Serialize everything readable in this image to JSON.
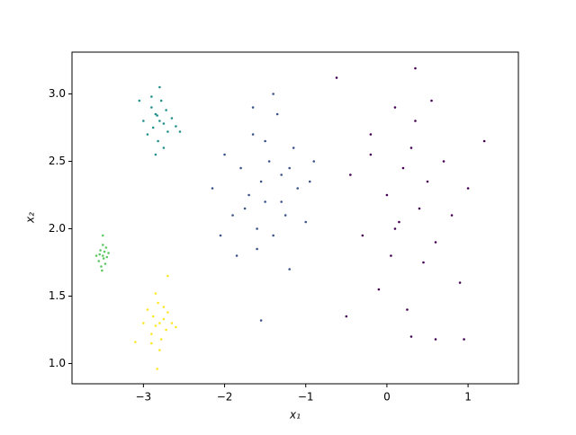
{
  "chart_data": {
    "type": "scatter",
    "xlabel": "x₁",
    "ylabel": "x₂",
    "xlim": [
      -3.88,
      1.62
    ],
    "ylim": [
      0.85,
      3.31
    ],
    "xticks": [
      {
        "value": -3,
        "label": "−3"
      },
      {
        "value": -2,
        "label": "−2"
      },
      {
        "value": -1,
        "label": "−1"
      },
      0,
      1
    ],
    "yticks": [
      {
        "value": 1,
        "label": "1.0"
      },
      1.5,
      {
        "value": 2,
        "label": "2.0"
      },
      2.5,
      {
        "value": 3,
        "label": "3.0"
      }
    ],
    "series": [
      {
        "color": "#440154",
        "x": [
          -0.62,
          -0.45,
          -0.3,
          -0.2,
          -0.1,
          0.0,
          0.05,
          0.1,
          0.15,
          0.2,
          0.25,
          0.3,
          0.35,
          0.4,
          0.45,
          0.5,
          0.55,
          0.6,
          0.7,
          0.8,
          0.9,
          1.0,
          1.2,
          -0.5,
          0.1,
          0.3,
          -0.2,
          0.6,
          0.35,
          0.95
        ],
        "y": [
          3.12,
          2.4,
          1.95,
          2.7,
          1.55,
          2.25,
          1.8,
          2.9,
          2.05,
          2.45,
          1.4,
          2.6,
          3.19,
          2.15,
          1.75,
          2.35,
          2.95,
          1.9,
          2.5,
          2.1,
          1.6,
          2.3,
          2.65,
          1.35,
          2.0,
          1.2,
          2.55,
          1.18,
          2.8,
          1.18
        ]
      },
      {
        "color": "#3b528b",
        "x": [
          -2.15,
          -2.0,
          -1.9,
          -1.85,
          -1.8,
          -1.7,
          -1.65,
          -1.6,
          -1.55,
          -1.5,
          -1.45,
          -1.4,
          -1.35,
          -1.3,
          -1.25,
          -1.2,
          -1.15,
          -1.1,
          -1.0,
          -0.9,
          -1.75,
          -1.5,
          -1.6,
          -1.3,
          -1.4,
          -2.05,
          -1.2,
          -1.55,
          -0.95,
          -1.65
        ],
        "y": [
          2.3,
          2.55,
          2.1,
          1.8,
          2.45,
          2.25,
          2.7,
          2.0,
          2.35,
          2.2,
          2.5,
          1.95,
          2.85,
          2.4,
          2.1,
          1.7,
          2.6,
          2.3,
          2.05,
          2.5,
          2.15,
          2.65,
          1.85,
          2.2,
          3.0,
          1.95,
          2.45,
          1.32,
          2.35,
          2.9
        ]
      },
      {
        "color": "#21918c",
        "x": [
          -3.0,
          -2.95,
          -2.9,
          -2.88,
          -2.85,
          -2.82,
          -2.8,
          -2.78,
          -2.75,
          -2.72,
          -2.7,
          -2.65,
          -2.6,
          -2.85,
          -2.8,
          -2.9,
          -2.75,
          -2.83,
          -2.55,
          -3.05
        ],
        "y": [
          2.8,
          2.7,
          2.9,
          2.75,
          2.85,
          2.65,
          2.8,
          2.95,
          2.78,
          2.88,
          2.72,
          2.82,
          2.76,
          2.55,
          3.05,
          2.98,
          2.6,
          2.84,
          2.72,
          2.95
        ]
      },
      {
        "color": "#5ec962",
        "x": [
          -3.58,
          -3.55,
          -3.53,
          -3.52,
          -3.5,
          -3.5,
          -3.49,
          -3.48,
          -3.47,
          -3.45,
          -3.43,
          -3.51,
          -3.46,
          -3.54,
          -3.5
        ],
        "y": [
          1.8,
          1.76,
          1.84,
          1.72,
          1.8,
          1.88,
          1.78,
          1.83,
          1.74,
          1.79,
          1.82,
          1.69,
          1.86,
          1.81,
          1.95
        ]
      },
      {
        "color": "#fde725",
        "x": [
          -3.0,
          -2.95,
          -2.9,
          -2.88,
          -2.85,
          -2.82,
          -2.8,
          -2.78,
          -2.75,
          -2.72,
          -2.7,
          -2.65,
          -2.6,
          -2.85,
          -2.8,
          -2.9,
          -2.75,
          -2.83,
          -3.1,
          -2.7
        ],
        "y": [
          1.3,
          1.4,
          1.22,
          1.35,
          1.28,
          1.45,
          1.3,
          1.18,
          1.33,
          1.25,
          1.38,
          1.3,
          1.27,
          1.52,
          1.1,
          1.15,
          1.42,
          0.96,
          1.16,
          1.65
        ]
      }
    ]
  }
}
